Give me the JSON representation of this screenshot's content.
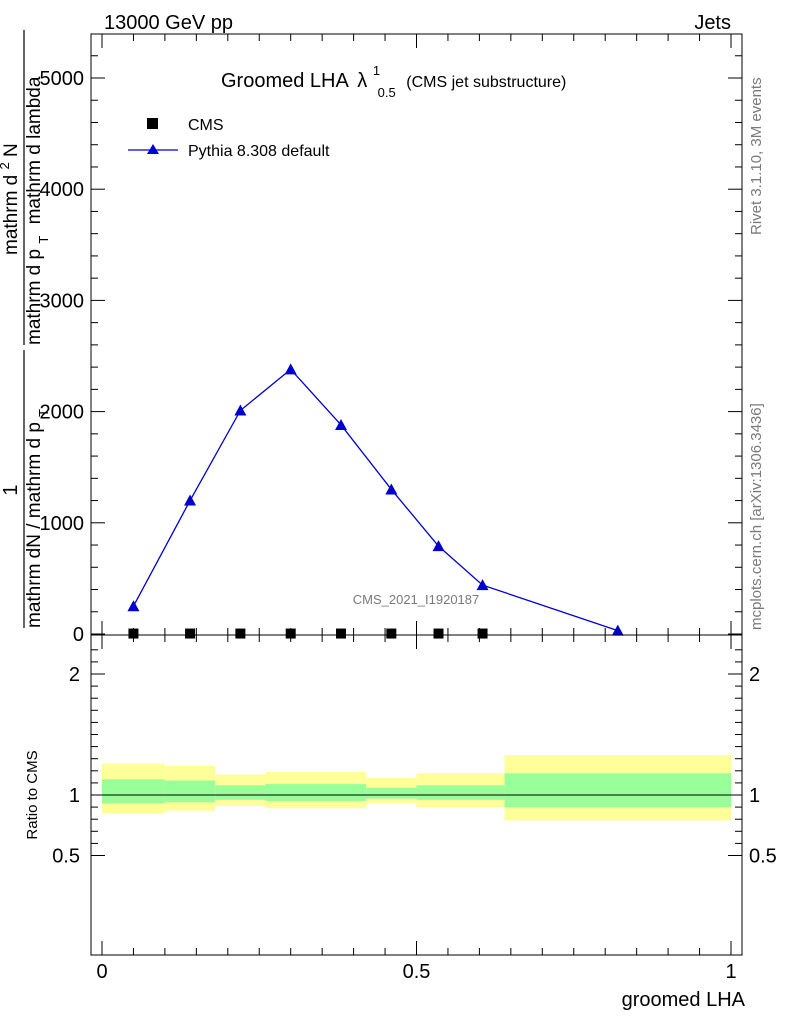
{
  "header": {
    "left": "13000 GeV pp",
    "right": "Jets"
  },
  "side_labels": {
    "rivet": "Rivet 3.1.10,  3M events",
    "mcplots": "mcplots.cern.ch [arXiv:1306.3436]"
  },
  "watermark": "CMS_2021_I1920187",
  "chart_data": [
    {
      "type": "line",
      "title": {
        "main": "Groomed LHA",
        "symbol": "λ",
        "superscript": "1",
        "subscript": "0.5",
        "suffix": "(CMS jet substructure)"
      },
      "ylabel": {
        "numerator_one": "1",
        "denominator_one": "mathrm dN / mathrm d p",
        "denominator_one_sub": "T",
        "numerator_two": "mathrm d",
        "numerator_two_sup": "2",
        "numerator_two_rest": "N",
        "denominator_two": "mathrm d p",
        "denominator_two_sub": "T",
        "denominator_two_rest": "mathrm d lambda"
      },
      "xlim": [
        0,
        1
      ],
      "ylim": [
        0,
        5000
      ],
      "yticks": [
        {
          "value": 0,
          "label": "0"
        },
        {
          "value": 1000,
          "label": "1000"
        },
        {
          "value": 2000,
          "label": "2000"
        },
        {
          "value": 3000,
          "label": "3000"
        },
        {
          "value": 4000,
          "label": "4000"
        },
        {
          "value": 5000,
          "label": "5000"
        }
      ],
      "legend": {
        "placement": "top-left",
        "entries": [
          {
            "label": "CMS",
            "marker": "square",
            "color": "#000000"
          },
          {
            "label": "Pythia 8.308 default",
            "marker": "triangle",
            "color": "#0000cc"
          }
        ]
      },
      "series": [
        {
          "name": "CMS",
          "color": "#000000",
          "marker": "square",
          "x": [
            0.05,
            0.14,
            0.22,
            0.3,
            0.38,
            0.46,
            0.535,
            0.605
          ],
          "y": [
            4,
            4,
            4,
            4,
            4,
            4,
            4,
            4
          ]
        },
        {
          "name": "Pythia 8.308 default",
          "color": "#0000cc",
          "marker": "triangle",
          "x": [
            0.05,
            0.14,
            0.22,
            0.3,
            0.38,
            0.46,
            0.535,
            0.605,
            0.82
          ],
          "y": [
            250,
            1200,
            2010,
            2380,
            1880,
            1300,
            790,
            440,
            30
          ]
        }
      ]
    },
    {
      "type": "area",
      "ylabel": "Ratio to CMS",
      "xlabel": "groomed LHA",
      "xlim": [
        0,
        1
      ],
      "ylim": [
        0.4,
        2.25
      ],
      "xticks": [
        {
          "value": 0,
          "label": "0"
        },
        {
          "value": 0.5,
          "label": "0.5"
        },
        {
          "value": 1,
          "label": "1"
        }
      ],
      "yticks": [
        {
          "value": 0.5,
          "label": "0.5"
        },
        {
          "value": 1,
          "label": "1"
        },
        {
          "value": 2,
          "label": "2"
        }
      ],
      "reference_line": 1,
      "bands": {
        "outer_color": "#ffff99",
        "inner_color": "#99ff99",
        "bins": [
          {
            "lo": 0.0,
            "hi": 0.1,
            "outer": [
              0.85,
              1.26
            ],
            "inner": [
              0.93,
              1.13
            ]
          },
          {
            "lo": 0.1,
            "hi": 0.18,
            "outer": [
              0.87,
              1.24
            ],
            "inner": [
              0.94,
              1.12
            ]
          },
          {
            "lo": 0.18,
            "hi": 0.26,
            "outer": [
              0.91,
              1.17
            ],
            "inner": [
              0.96,
              1.08
            ]
          },
          {
            "lo": 0.26,
            "hi": 0.42,
            "outer": [
              0.89,
              1.19
            ],
            "inner": [
              0.95,
              1.09
            ]
          },
          {
            "lo": 0.42,
            "hi": 0.5,
            "outer": [
              0.93,
              1.14
            ],
            "inner": [
              0.97,
              1.06
            ]
          },
          {
            "lo": 0.5,
            "hi": 0.64,
            "outer": [
              0.9,
              1.18
            ],
            "inner": [
              0.96,
              1.08
            ]
          },
          {
            "lo": 0.64,
            "hi": 1.0,
            "outer": [
              0.79,
              1.33
            ],
            "inner": [
              0.9,
              1.18
            ]
          }
        ]
      }
    }
  ]
}
